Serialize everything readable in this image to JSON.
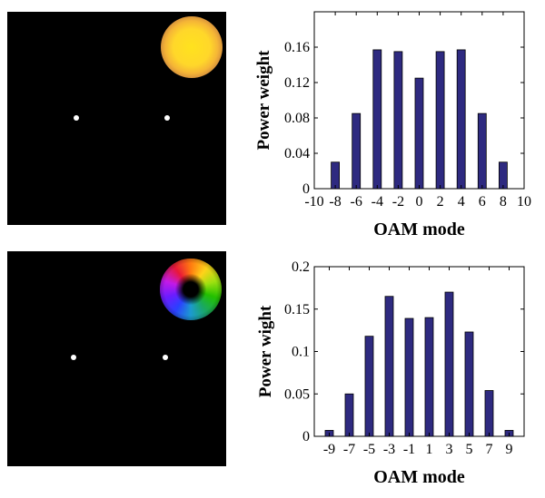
{
  "chart_data": [
    {
      "type": "bar",
      "x": [
        -8,
        -6,
        -4,
        -2,
        0,
        2,
        4,
        6,
        8
      ],
      "values": [
        0.03,
        0.085,
        0.157,
        0.155,
        0.125,
        0.155,
        0.157,
        0.085,
        0.03
      ],
      "xlim": [
        -10,
        10
      ],
      "xticks": [
        "-10",
        "-8",
        "-6",
        "-4",
        "-2",
        "0",
        "2",
        "4",
        "6",
        "8",
        "10"
      ],
      "ylim": [
        0,
        0.2
      ],
      "yticks": [
        "0",
        "0.04",
        "0.08",
        "0.12",
        "0.16"
      ],
      "xlabel": "OAM mode",
      "ylabel": "Power weight",
      "color": "#2e2a80",
      "grid": false
    },
    {
      "type": "bar",
      "x": [
        -9,
        -7,
        -5,
        -3,
        -1,
        1,
        3,
        5,
        7,
        9
      ],
      "values": [
        0.007,
        0.05,
        0.118,
        0.165,
        0.139,
        0.14,
        0.17,
        0.123,
        0.054,
        0.007
      ],
      "xlim": [
        -10.5,
        10.5
      ],
      "xticks": [
        "-9",
        "-7",
        "-5",
        "-3",
        "-1",
        "1",
        "3",
        "5",
        "7",
        "9"
      ],
      "ylim": [
        0,
        0.2
      ],
      "yticks": [
        "0",
        "0.05",
        "0.1",
        "0.15",
        "0.2"
      ],
      "xlabel": "OAM mode",
      "ylabel": "Power wight",
      "color": "#2e2a80",
      "grid": false
    }
  ]
}
